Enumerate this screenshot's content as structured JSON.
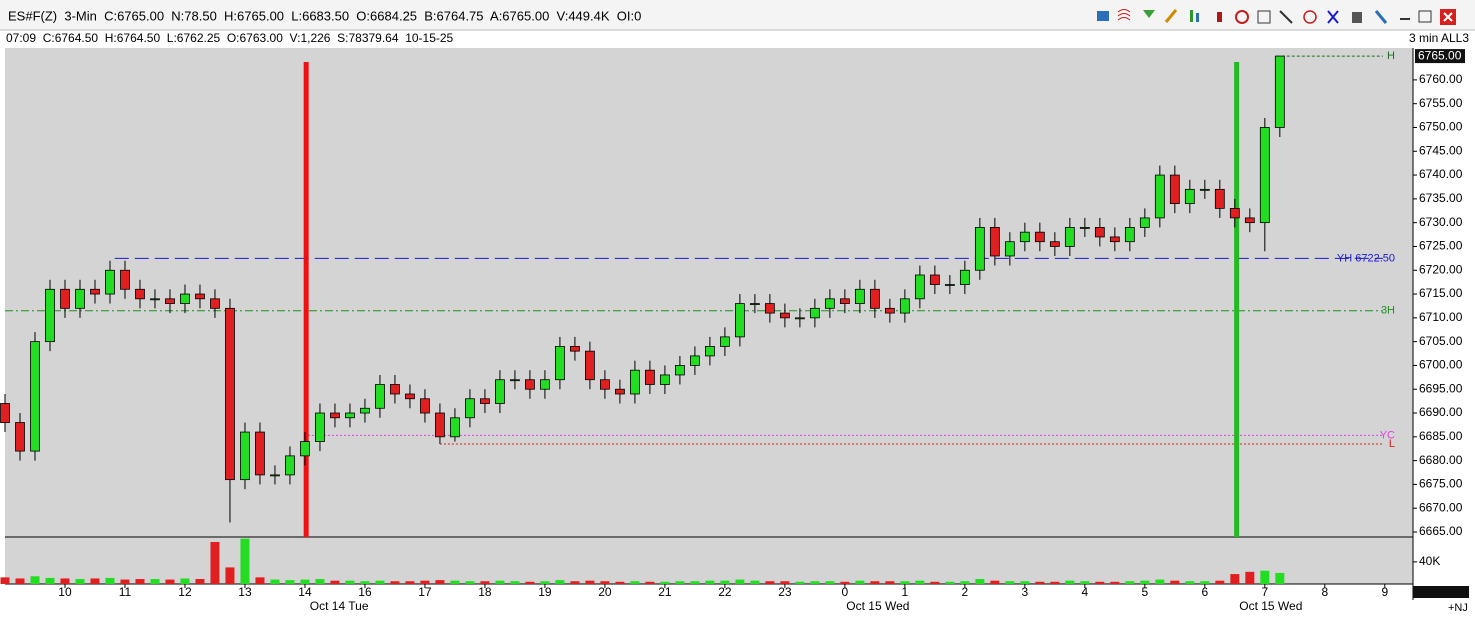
{
  "window": {
    "info_line": "ES#F(Z)  3-Min  C:6765.00  N:78.50  H:6765.00  L:6683.50  O:6684.25  B:6764.75  A:6765.00  V:449.4K  OI:0",
    "bar_info": "07:09  C:6764.50  H:6764.50  L:6762.25  O:6763.00  V:1,226  S:78379.64  10-15-25",
    "timeframe_label": "3 min ALL3",
    "corner_label": "+NJ"
  },
  "chart_data": {
    "type": "candlestick",
    "x": [
      -1,
      -0.75,
      -0.5,
      -0.25,
      0,
      0.25,
      0.5,
      0.75,
      1,
      1.25,
      1.5,
      1.75,
      2,
      2.25,
      2.5,
      2.75,
      3,
      3.25,
      3.5,
      3.75,
      4,
      4.25,
      4.5,
      4.75,
      5,
      5.25,
      5.5,
      5.75,
      6,
      6.25,
      6.5,
      6.75,
      7,
      7.25,
      7.5,
      7.75,
      8,
      8.25,
      8.5,
      8.75,
      9,
      9.25,
      9.5,
      9.75,
      10,
      10.25,
      10.5,
      10.75,
      11,
      11.25,
      11.5,
      11.75,
      12,
      12.25,
      12.5,
      12.75,
      13,
      13.25,
      13.5,
      13.75,
      14,
      14.25,
      14.5,
      14.75,
      15,
      15.25,
      15.5,
      15.75,
      16,
      16.25,
      16.5,
      16.75,
      17,
      17.25,
      17.5,
      17.75,
      18,
      18.25,
      18.5,
      18.75,
      19,
      19.25,
      19.5,
      19.75,
      20,
      20.25
    ],
    "open": [
      6692,
      6688,
      6682,
      6705,
      6716,
      6712,
      6716,
      6715,
      6720,
      6716,
      6714,
      6714,
      6713,
      6715,
      6714,
      6712,
      6676,
      6686,
      6677,
      6677,
      6681,
      6684,
      6690,
      6689,
      6690,
      6691,
      6696,
      6694,
      6693,
      6690,
      6685,
      6689,
      6693,
      6692,
      6697,
      6697,
      6695,
      6697,
      6704,
      6703,
      6697,
      6695,
      6694,
      6699,
      6696,
      6698,
      6700,
      6702,
      6704,
      6706,
      6713,
      6713,
      6711,
      6710,
      6710,
      6712,
      6714,
      6713,
      6716,
      6712,
      6711,
      6714,
      6719,
      6717,
      6717,
      6720,
      6729,
      6723,
      6726,
      6728,
      6726,
      6725,
      6729,
      6729,
      6727,
      6726,
      6729,
      6731,
      6740,
      6734,
      6737,
      6737,
      6733,
      6731,
      6730,
      6750
    ],
    "high": [
      6694,
      6690,
      6707,
      6718,
      6718,
      6718,
      6718,
      6722,
      6722,
      6718,
      6716,
      6716,
      6717,
      6717,
      6716,
      6714,
      6688,
      6688,
      6679,
      6683,
      6686,
      6692,
      6692,
      6692,
      6693,
      6698,
      6698,
      6696,
      6695,
      6692,
      6691,
      6695,
      6695,
      6699,
      6699,
      6699,
      6699,
      6706,
      6706,
      6705,
      6699,
      6697,
      6701,
      6701,
      6700,
      6702,
      6704,
      6706,
      6708,
      6715,
      6715,
      6715,
      6713,
      6712,
      6714,
      6716,
      6716,
      6718,
      6718,
      6714,
      6716,
      6721,
      6721,
      6719,
      6722,
      6731,
      6731,
      6728,
      6730,
      6730,
      6728,
      6731,
      6731,
      6731,
      6729,
      6731,
      6733,
      6742,
      6742,
      6739,
      6739,
      6739,
      6735,
      6733,
      6752,
      6765
    ],
    "low": [
      6686,
      6680,
      6680,
      6703,
      6710,
      6710,
      6713,
      6713,
      6714,
      6712,
      6712,
      6711,
      6711,
      6712,
      6710,
      6667,
      6674,
      6675,
      6675,
      6675,
      6679,
      6682,
      6687,
      6687,
      6688,
      6689,
      6692,
      6691,
      6688,
      6683.5,
      6684,
      6687,
      6690,
      6690,
      6695,
      6693,
      6693,
      6695,
      6701,
      6695,
      6693,
      6692,
      6692,
      6694,
      6694,
      6696,
      6698,
      6700,
      6702,
      6704,
      6711,
      6709,
      6708,
      6708,
      6708,
      6710,
      6711,
      6711,
      6710,
      6709,
      6709,
      6712,
      6715,
      6715,
      6715,
      6718,
      6721,
      6721,
      6724,
      6724,
      6723,
      6723,
      6727,
      6725,
      6724,
      6724,
      6727,
      6729,
      6732,
      6732,
      6735,
      6731,
      6729,
      6728,
      6724,
      6748
    ],
    "close": [
      6688,
      6682,
      6705,
      6716,
      6712,
      6716,
      6715,
      6720,
      6716,
      6714,
      6714,
      6713,
      6715,
      6714,
      6712,
      6676,
      6686,
      6677,
      6677,
      6681,
      6684,
      6690,
      6689,
      6690,
      6691,
      6696,
      6694,
      6693,
      6690,
      6685,
      6689,
      6693,
      6692,
      6697,
      6697,
      6695,
      6697,
      6704,
      6703,
      6697,
      6695,
      6694,
      6699,
      6696,
      6698,
      6700,
      6702,
      6704,
      6706,
      6713,
      6713,
      6711,
      6710,
      6710,
      6712,
      6714,
      6713,
      6716,
      6712,
      6711,
      6714,
      6719,
      6717,
      6717,
      6720,
      6729,
      6723,
      6726,
      6728,
      6726,
      6725,
      6729,
      6729,
      6727,
      6726,
      6729,
      6731,
      6740,
      6734,
      6737,
      6737,
      6733,
      6731,
      6730,
      6750,
      6765
    ],
    "volume": [
      12000,
      10000,
      14000,
      11000,
      10000,
      9000,
      10000,
      11000,
      8000,
      9000,
      9000,
      8000,
      10000,
      9000,
      76000,
      30000,
      82000,
      12000,
      8000,
      7000,
      8000,
      9000,
      6000,
      6000,
      5000,
      6000,
      5000,
      5000,
      6000,
      7000,
      6000,
      5000,
      5000,
      6000,
      5000,
      4000,
      5000,
      7000,
      5000,
      6000,
      5000,
      4000,
      5000,
      4000,
      4000,
      5000,
      5000,
      6000,
      6000,
      8000,
      6000,
      5000,
      5000,
      4000,
      5000,
      5000,
      4000,
      6000,
      5000,
      5000,
      5000,
      6000,
      4000,
      4000,
      5000,
      9000,
      6000,
      5000,
      5000,
      4000,
      4000,
      6000,
      5000,
      4000,
      4000,
      5000,
      6000,
      8000,
      6000,
      5000,
      5000,
      6000,
      18000,
      22000,
      24000,
      20000
    ],
    "up_color": "#22dd22",
    "down_color": "#e02020",
    "xlim": [
      -1,
      22.47
    ],
    "xticks": [
      {
        "value": 0,
        "label": "10"
      },
      {
        "value": 1,
        "label": "11"
      },
      {
        "value": 2,
        "label": "12"
      },
      {
        "value": 3,
        "label": "13"
      },
      {
        "value": 4,
        "label": "14"
      },
      {
        "value": 5,
        "label": "16"
      },
      {
        "value": 6,
        "label": "17"
      },
      {
        "value": 7,
        "label": "18"
      },
      {
        "value": 8,
        "label": "19"
      },
      {
        "value": 9,
        "label": "20"
      },
      {
        "value": 10,
        "label": "21"
      },
      {
        "value": 11,
        "label": "22"
      },
      {
        "value": 12,
        "label": "23"
      },
      {
        "value": 13,
        "label": "0"
      },
      {
        "value": 14,
        "label": "1"
      },
      {
        "value": 15,
        "label": "2"
      },
      {
        "value": 16,
        "label": "3"
      },
      {
        "value": 17,
        "label": "4"
      },
      {
        "value": 18,
        "label": "5"
      },
      {
        "value": 19,
        "label": "6"
      },
      {
        "value": 20,
        "label": "7"
      },
      {
        "value": 21,
        "label": "8"
      },
      {
        "value": 22,
        "label": "9"
      }
    ],
    "date_labels": [
      {
        "value": 4.57,
        "label": "Oct 14 Tue"
      },
      {
        "value": 13.55,
        "label": "Oct 15 Wed"
      },
      {
        "value": 20.1,
        "label": "Oct 15 Wed"
      }
    ],
    "ylim": [
      6663.95,
      6766.7
    ],
    "yticks": [
      {
        "value": 6665,
        "label": "6665.00"
      },
      {
        "value": 6670,
        "label": "6670.00"
      },
      {
        "value": 6675,
        "label": "6675.00"
      },
      {
        "value": 6680,
        "label": "6680.00"
      },
      {
        "value": 6685,
        "label": "6685.00"
      },
      {
        "value": 6690,
        "label": "6690.00"
      },
      {
        "value": 6695,
        "label": "6695.00"
      },
      {
        "value": 6700,
        "label": "6700.00"
      },
      {
        "value": 6705,
        "label": "6705.00"
      },
      {
        "value": 6710,
        "label": "6710.00"
      },
      {
        "value": 6715,
        "label": "6715.00"
      },
      {
        "value": 6720,
        "label": "6720.00"
      },
      {
        "value": 6725,
        "label": "6725.00"
      },
      {
        "value": 6730,
        "label": "6730.00"
      },
      {
        "value": 6735,
        "label": "6735.00"
      },
      {
        "value": 6740,
        "label": "6740.00"
      },
      {
        "value": 6745,
        "label": "6745.00"
      },
      {
        "value": 6750,
        "label": "6750.00"
      },
      {
        "value": 6755,
        "label": "6755.00"
      },
      {
        "value": 6760,
        "label": "6760.00"
      }
    ],
    "volume_ylim": [
      0,
      85000
    ],
    "volume_yticks": [
      {
        "value": 40000,
        "label": "40K"
      }
    ],
    "last_price": {
      "value": 6765,
      "label": "6765.00"
    },
    "levels": [
      {
        "label": "YH 6722.50",
        "value": 6722.5,
        "x_start": 0.83,
        "color": "#1a1acc",
        "dash": "14 6"
      },
      {
        "label": "3H",
        "value": 6711.5,
        "x_start": -1,
        "color": "#1f8f1f",
        "dash": "8 3 2 3"
      },
      {
        "label": "YC",
        "value": 6685.3,
        "x_start": 4.05,
        "color": "#e040e0",
        "dash": "2 2"
      },
      {
        "label": "L",
        "value": 6683.5,
        "x_start": 6.25,
        "color": "#d02020",
        "dash": "2 2"
      },
      {
        "label": "H",
        "value": 6765,
        "x_start": 20.2,
        "color": "#207020",
        "dash": "3 2"
      }
    ],
    "markers": [
      {
        "x": 4.02,
        "color": "#ee1111"
      },
      {
        "x": 19.53,
        "color": "#22bb22"
      }
    ]
  }
}
